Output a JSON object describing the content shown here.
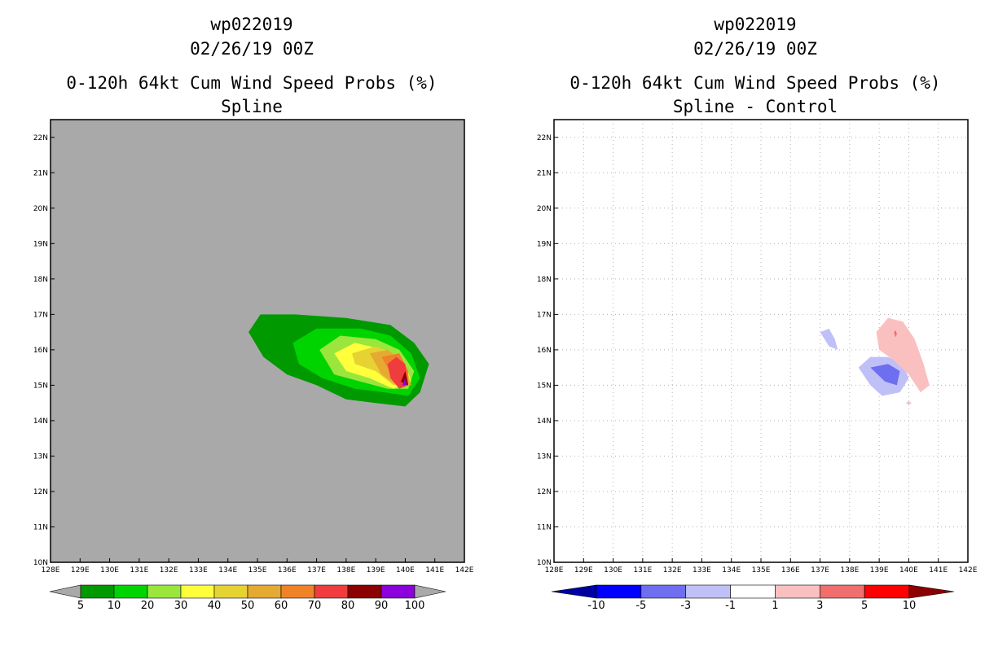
{
  "chart_data": [
    {
      "type": "contour_map",
      "storm_id": "wp022019",
      "datetime": "02/26/19 00Z",
      "title": "0-120h 64kt Cum Wind Speed Probs (%)",
      "subtitle": "Spline",
      "xlabel": "",
      "ylabel": "",
      "xlim": [
        128,
        142
      ],
      "ylim": [
        10,
        22.5
      ],
      "x_ticks": [
        "128E",
        "129E",
        "130E",
        "131E",
        "132E",
        "133E",
        "134E",
        "135E",
        "136E",
        "137E",
        "138E",
        "139E",
        "140E",
        "141E",
        "142E"
      ],
      "y_ticks": [
        "10N",
        "11N",
        "12N",
        "13N",
        "14N",
        "15N",
        "16N",
        "17N",
        "18N",
        "19N",
        "20N",
        "21N",
        "22N"
      ],
      "background_color": "#a9a9a9",
      "grid": false,
      "colorbar": {
        "levels": [
          "5",
          "10",
          "20",
          "30",
          "40",
          "50",
          "60",
          "70",
          "80",
          "90",
          "100"
        ],
        "colors": [
          "#009a00",
          "#00d400",
          "#9ae63c",
          "#ffff3c",
          "#e6d232",
          "#e6aa32",
          "#f08228",
          "#f03c3c",
          "#8c0000",
          "#8c00dc"
        ]
      },
      "contours": [
        {
          "level": 5,
          "color": "#009a00",
          "lonlat": [
            [
              134.7,
              16.5
            ],
            [
              135.1,
              17.0
            ],
            [
              136.3,
              17.0
            ],
            [
              138.0,
              16.9
            ],
            [
              139.5,
              16.7
            ],
            [
              140.3,
              16.2
            ],
            [
              140.8,
              15.6
            ],
            [
              140.5,
              14.8
            ],
            [
              140.0,
              14.4
            ],
            [
              139.0,
              14.5
            ],
            [
              138.0,
              14.6
            ],
            [
              137.0,
              15.0
            ],
            [
              136.0,
              15.3
            ],
            [
              135.2,
              15.8
            ],
            [
              134.7,
              16.5
            ]
          ]
        },
        {
          "level": 10,
          "color": "#00d400",
          "lonlat": [
            [
              136.2,
              16.2
            ],
            [
              137.0,
              16.6
            ],
            [
              138.5,
              16.6
            ],
            [
              139.5,
              16.4
            ],
            [
              140.2,
              15.9
            ],
            [
              140.5,
              15.2
            ],
            [
              140.1,
              14.7
            ],
            [
              139.3,
              14.8
            ],
            [
              138.3,
              14.9
            ],
            [
              137.2,
              15.2
            ],
            [
              136.4,
              15.6
            ],
            [
              136.2,
              16.2
            ]
          ]
        },
        {
          "level": 20,
          "color": "#9ae63c",
          "lonlat": [
            [
              137.1,
              16.0
            ],
            [
              137.8,
              16.4
            ],
            [
              139.0,
              16.3
            ],
            [
              139.8,
              16.0
            ],
            [
              140.3,
              15.4
            ],
            [
              140.1,
              14.9
            ],
            [
              139.4,
              14.9
            ],
            [
              138.5,
              15.1
            ],
            [
              137.6,
              15.3
            ],
            [
              137.1,
              16.0
            ]
          ]
        },
        {
          "level": 30,
          "color": "#ffff3c",
          "lonlat": [
            [
              137.6,
              15.9
            ],
            [
              138.3,
              16.2
            ],
            [
              139.3,
              16.0
            ],
            [
              140.0,
              15.6
            ],
            [
              140.2,
              15.1
            ],
            [
              139.6,
              14.9
            ],
            [
              138.8,
              15.2
            ],
            [
              138.0,
              15.4
            ],
            [
              137.6,
              15.9
            ]
          ]
        },
        {
          "level": 40,
          "color": "#e6d232",
          "lonlat": [
            [
              138.2,
              15.9
            ],
            [
              139.0,
              16.1
            ],
            [
              139.8,
              15.8
            ],
            [
              140.1,
              15.1
            ],
            [
              139.6,
              15.0
            ],
            [
              139.0,
              15.4
            ],
            [
              138.3,
              15.6
            ],
            [
              138.2,
              15.9
            ]
          ]
        },
        {
          "level": 50,
          "color": "#e6aa32",
          "lonlat": [
            [
              138.8,
              15.9
            ],
            [
              139.4,
              16.0
            ],
            [
              140.0,
              15.6
            ],
            [
              140.2,
              15.0
            ],
            [
              139.7,
              15.0
            ],
            [
              139.2,
              15.3
            ],
            [
              138.8,
              15.9
            ]
          ]
        },
        {
          "level": 60,
          "color": "#f08228",
          "lonlat": [
            [
              139.2,
              15.8
            ],
            [
              139.8,
              15.9
            ],
            [
              140.1,
              15.4
            ],
            [
              140.1,
              15.0
            ],
            [
              139.6,
              15.2
            ],
            [
              139.2,
              15.8
            ]
          ]
        },
        {
          "level": 70,
          "color": "#f03c3c",
          "lonlat": [
            [
              139.4,
              15.6
            ],
            [
              139.7,
              15.8
            ],
            [
              140.0,
              15.6
            ],
            [
              140.1,
              15.0
            ],
            [
              139.8,
              14.9
            ],
            [
              139.5,
              15.2
            ],
            [
              139.4,
              15.6
            ]
          ]
        },
        {
          "level": 80,
          "color": "#8c0000",
          "lonlat": [
            [
              139.85,
              15.1
            ],
            [
              140.0,
              15.4
            ],
            [
              140.1,
              15.0
            ],
            [
              139.85,
              15.1
            ]
          ]
        },
        {
          "level": 90,
          "color": "#8c00dc",
          "lonlat": [
            [
              139.9,
              15.0
            ],
            [
              140.0,
              15.2
            ],
            [
              140.05,
              15.0
            ],
            [
              139.9,
              15.0
            ]
          ]
        }
      ]
    },
    {
      "type": "contour_map",
      "storm_id": "wp022019",
      "datetime": "02/26/19 00Z",
      "title": "0-120h 64kt Cum Wind Speed Probs (%)",
      "subtitle": "Spline - Control",
      "xlabel": "",
      "ylabel": "",
      "xlim": [
        128,
        142
      ],
      "ylim": [
        10,
        22.5
      ],
      "x_ticks": [
        "128E",
        "129E",
        "130E",
        "131E",
        "132E",
        "133E",
        "134E",
        "135E",
        "136E",
        "137E",
        "138E",
        "139E",
        "140E",
        "141E",
        "142E"
      ],
      "y_ticks": [
        "10N",
        "11N",
        "12N",
        "13N",
        "14N",
        "15N",
        "16N",
        "17N",
        "18N",
        "19N",
        "20N",
        "21N",
        "22N"
      ],
      "background_color": "#ffffff",
      "grid": true,
      "colorbar": {
        "levels": [
          "-10",
          "-5",
          "-3",
          "-1",
          "1",
          "3",
          "5",
          "10"
        ],
        "colors": [
          "#0000a0",
          "#0000ff",
          "#6e6ef0",
          "#c0c0f8",
          "#ffffff",
          "#fac0c0",
          "#f06e6e",
          "#ff0000",
          "#8c0000"
        ]
      },
      "contours": [
        {
          "level": -3,
          "color": "#c0c0f8",
          "lonlat": [
            [
              137.0,
              16.5
            ],
            [
              137.3,
              16.6
            ],
            [
              137.5,
              16.3
            ],
            [
              137.6,
              16.0
            ],
            [
              137.3,
              16.1
            ],
            [
              137.0,
              16.5
            ]
          ]
        },
        {
          "level": -3,
          "color": "#c0c0f8",
          "lonlat": [
            [
              138.3,
              15.5
            ],
            [
              138.7,
              15.8
            ],
            [
              139.3,
              15.8
            ],
            [
              139.8,
              15.6
            ],
            [
              140.0,
              15.2
            ],
            [
              139.7,
              14.8
            ],
            [
              139.1,
              14.7
            ],
            [
              138.7,
              15.0
            ],
            [
              138.3,
              15.5
            ]
          ]
        },
        {
          "level": -5,
          "color": "#6e6ef0",
          "lonlat": [
            [
              138.7,
              15.5
            ],
            [
              139.3,
              15.6
            ],
            [
              139.7,
              15.4
            ],
            [
              139.6,
              15.0
            ],
            [
              139.2,
              15.1
            ],
            [
              138.7,
              15.5
            ]
          ]
        },
        {
          "level": 3,
          "color": "#fac0c0",
          "lonlat": [
            [
              138.9,
              16.5
            ],
            [
              139.3,
              16.9
            ],
            [
              139.8,
              16.8
            ],
            [
              140.2,
              16.3
            ],
            [
              140.5,
              15.6
            ],
            [
              140.7,
              15.0
            ],
            [
              140.4,
              14.8
            ],
            [
              140.0,
              15.3
            ],
            [
              139.5,
              15.7
            ],
            [
              139.0,
              16.0
            ],
            [
              138.9,
              16.5
            ]
          ]
        },
        {
          "level": 3,
          "color": "#fac0c0",
          "lonlat": [
            [
              139.9,
              14.5
            ],
            [
              140.0,
              14.55
            ],
            [
              140.1,
              14.5
            ],
            [
              140.0,
              14.45
            ],
            [
              139.9,
              14.5
            ]
          ]
        },
        {
          "level": 5,
          "color": "#f06e6e",
          "lonlat": [
            [
              139.5,
              16.5
            ],
            [
              139.55,
              16.55
            ],
            [
              139.6,
              16.45
            ],
            [
              139.55,
              16.35
            ],
            [
              139.5,
              16.5
            ]
          ]
        }
      ]
    }
  ]
}
